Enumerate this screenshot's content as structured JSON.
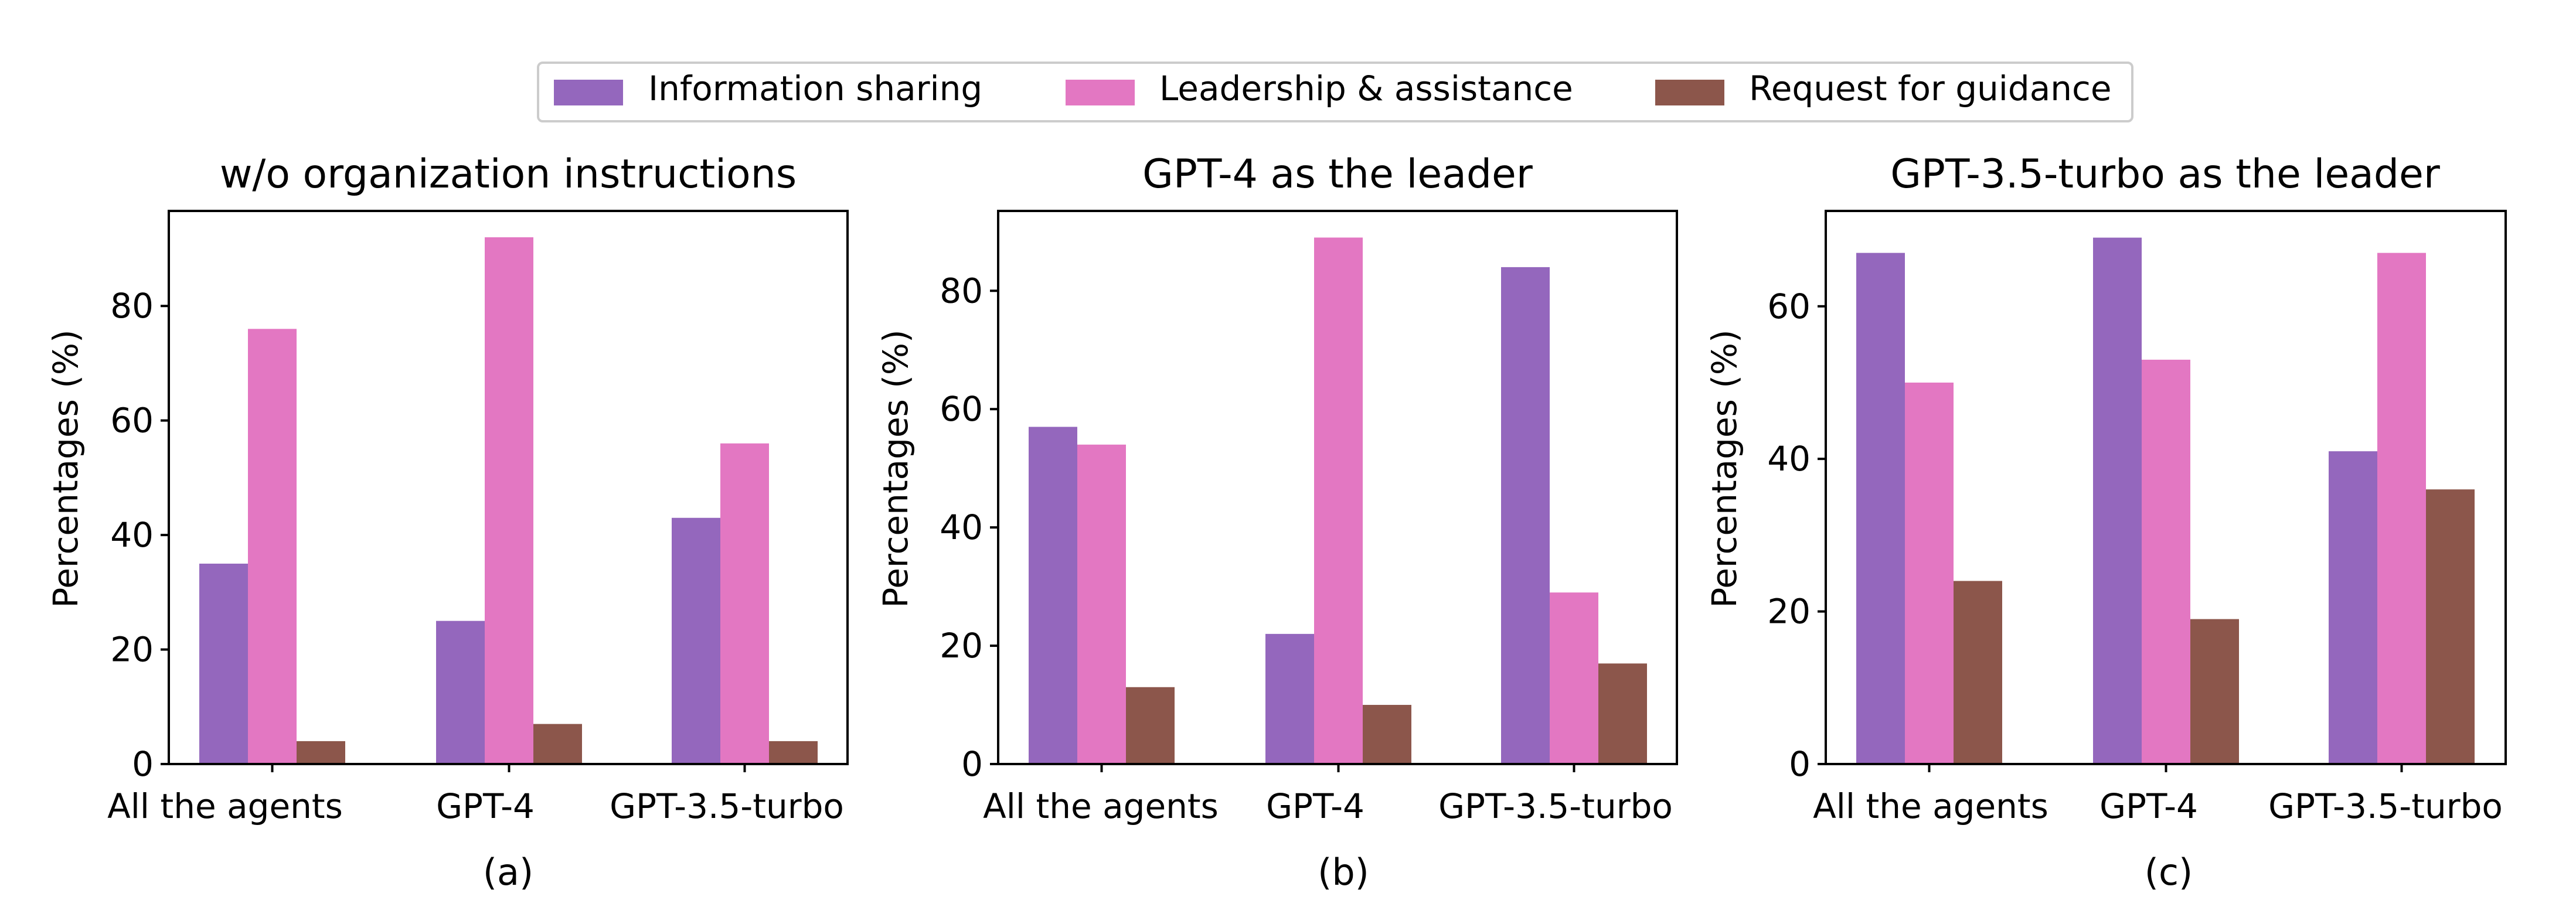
{
  "colors": {
    "information_sharing": "#9467bd",
    "leadership_assistance": "#e377c2",
    "request_guidance": "#8c564b"
  },
  "chart_data": {
    "legend": [
      "Information sharing",
      "Leadership & assistance",
      "Request for guidance"
    ],
    "charts": [
      {
        "type": "bar",
        "title": "w/o organization instructions",
        "caption": "(a)",
        "ylabel": "Percentages (%)",
        "categories": [
          "All the agents",
          "GPT-4",
          "GPT-3.5-turbo"
        ],
        "ylim": [
          0,
          96.6
        ],
        "yticks": [
          0,
          20,
          40,
          60,
          80
        ],
        "series": [
          {
            "name": "Information sharing",
            "values": [
              35,
              25,
              43
            ]
          },
          {
            "name": "Leadership & assistance",
            "values": [
              76,
              92,
              56
            ]
          },
          {
            "name": "Request for guidance",
            "values": [
              4,
              7,
              4
            ]
          }
        ]
      },
      {
        "type": "bar",
        "title": "GPT-4 as the leader",
        "caption": "(b)",
        "ylabel": "Percentages (%)",
        "categories": [
          "All the agents",
          "GPT-4",
          "GPT-3.5-turbo"
        ],
        "ylim": [
          0,
          93.5
        ],
        "yticks": [
          0,
          20,
          40,
          60,
          80
        ],
        "series": [
          {
            "name": "Information sharing",
            "values": [
              57,
              22,
              84
            ]
          },
          {
            "name": "Leadership & assistance",
            "values": [
              54,
              89,
              29
            ]
          },
          {
            "name": "Request for guidance",
            "values": [
              13,
              10,
              17
            ]
          }
        ]
      },
      {
        "type": "bar",
        "title": "GPT-3.5-turbo as the leader",
        "caption": "(c)",
        "ylabel": "Percentages (%)",
        "categories": [
          "All the agents",
          "GPT-4",
          "GPT-3.5-turbo"
        ],
        "ylim": [
          0,
          72.5
        ],
        "yticks": [
          0,
          20,
          40,
          60
        ],
        "series": [
          {
            "name": "Information sharing",
            "values": [
              67,
              69,
              41
            ]
          },
          {
            "name": "Leadership & assistance",
            "values": [
              50,
              53,
              67
            ]
          },
          {
            "name": "Request for guidance",
            "values": [
              24,
              19,
              36
            ]
          }
        ]
      }
    ]
  }
}
